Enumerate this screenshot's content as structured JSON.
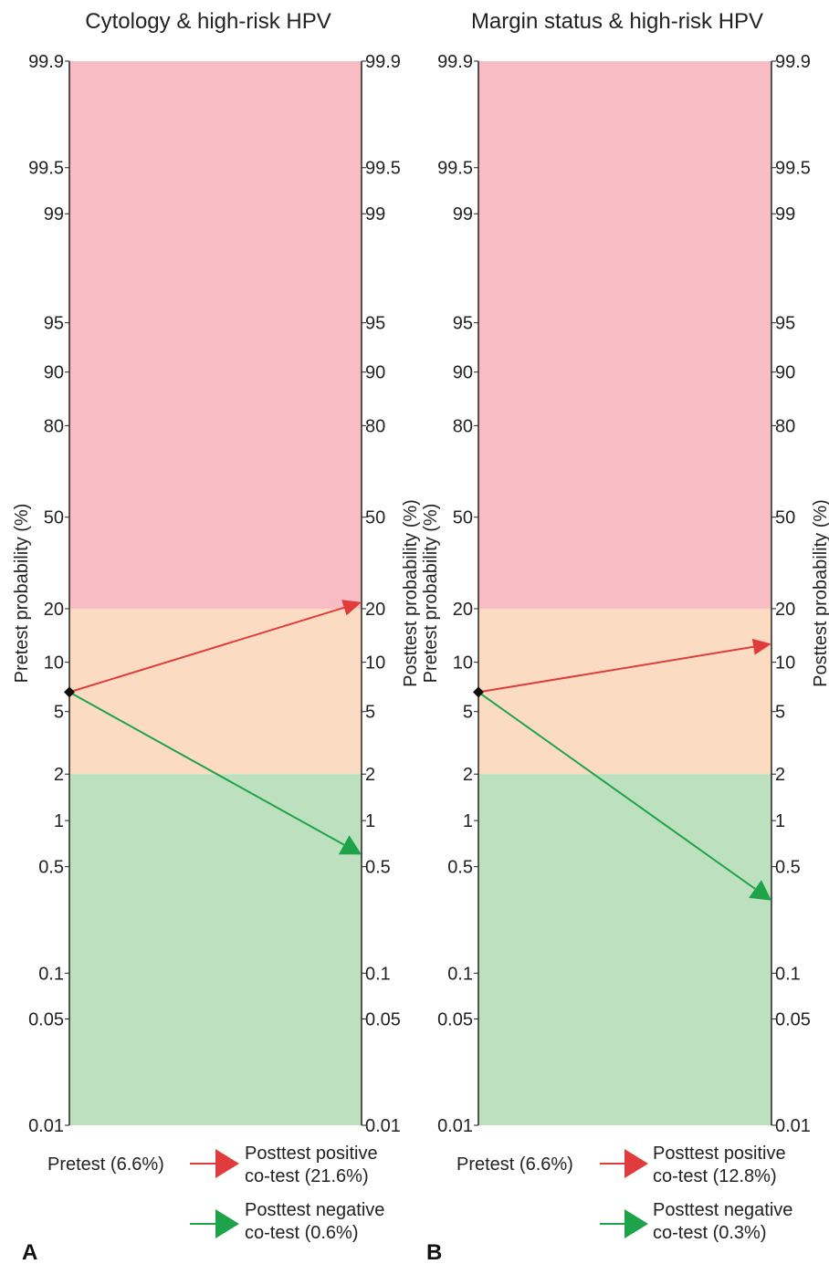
{
  "figure": {
    "panel_letters": [
      "A",
      "B"
    ],
    "zone_colors": {
      "high": "#f8bcc4",
      "mid": "#fbdcc2",
      "low": "#bde1bf"
    },
    "colors": {
      "positive": "#e03c3c",
      "negative": "#1fa34a",
      "axis": "#222222",
      "text": "#222222"
    }
  },
  "chart_data": [
    {
      "type": "line",
      "panel": "A",
      "title": "Cytology & high-risk HPV",
      "ylabel_left": "Pretest probability (%)",
      "ylabel_right": "Posttest probability (%)",
      "scale": "logit",
      "ylim": [
        0.01,
        99.9
      ],
      "ticks": [
        "99.9",
        "99.5",
        "99",
        "95",
        "90",
        "80",
        "50",
        "20",
        "10",
        "5",
        "2",
        "1",
        "0.5",
        "0.1",
        "0.05",
        "0.01"
      ],
      "zones": [
        {
          "from": 20,
          "to": 99.9,
          "color": "high"
        },
        {
          "from": 2,
          "to": 20,
          "color": "mid"
        },
        {
          "from": 0.01,
          "to": 2,
          "color": "low"
        }
      ],
      "pretest": 6.6,
      "series": [
        {
          "name": "Posttest positive co-test (21.6%)",
          "from": 6.6,
          "to": 21.6,
          "color": "positive"
        },
        {
          "name": "Posttest negative co-test (0.6%)",
          "from": 6.6,
          "to": 0.6,
          "color": "negative"
        }
      ],
      "legend": {
        "pretest": "Pretest (6.6%)",
        "positive": [
          "Posttest positive",
          "co-test (21.6%)"
        ],
        "negative": [
          "Posttest negative",
          "co-test (0.6%)"
        ]
      }
    },
    {
      "type": "line",
      "panel": "B",
      "title": "Margin status & high-risk HPV",
      "ylabel_left": "Pretest probability (%)",
      "ylabel_right": "Posttest probability (%)",
      "scale": "logit",
      "ylim": [
        0.01,
        99.9
      ],
      "ticks": [
        "99.9",
        "99.5",
        "99",
        "95",
        "90",
        "80",
        "50",
        "20",
        "10",
        "5",
        "2",
        "1",
        "0.5",
        "0.1",
        "0.05",
        "0.01"
      ],
      "zones": [
        {
          "from": 20,
          "to": 99.9,
          "color": "high"
        },
        {
          "from": 2,
          "to": 20,
          "color": "mid"
        },
        {
          "from": 0.01,
          "to": 2,
          "color": "low"
        }
      ],
      "pretest": 6.6,
      "series": [
        {
          "name": "Posttest positive co-test (12.8%)",
          "from": 6.6,
          "to": 12.8,
          "color": "positive"
        },
        {
          "name": "Posttest negative co-test (0.3%)",
          "from": 6.6,
          "to": 0.3,
          "color": "negative"
        }
      ],
      "legend": {
        "pretest": "Pretest (6.6%)",
        "positive": [
          "Posttest positive",
          "co-test (12.8%)"
        ],
        "negative": [
          "Posttest negative",
          "co-test (0.3%)"
        ]
      }
    }
  ]
}
